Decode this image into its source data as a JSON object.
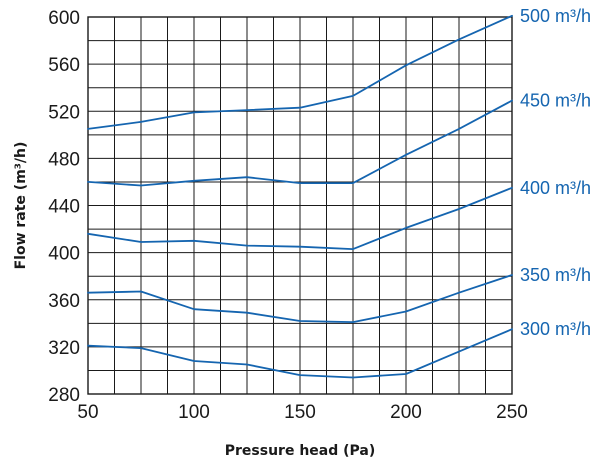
{
  "chart_data": {
    "type": "line",
    "xlabel": "Pressure head (Pa)",
    "ylabel": "Flow rate (m³/h)",
    "xlim": [
      50,
      250
    ],
    "ylim": [
      280,
      600
    ],
    "x_ticks": [
      50,
      100,
      150,
      200,
      250
    ],
    "y_ticks": [
      280,
      320,
      360,
      400,
      440,
      480,
      520,
      560,
      600
    ],
    "x_minor_step": 12.5,
    "y_minor_step": 20,
    "grid": true,
    "line_color": "#1565b0",
    "series": [
      {
        "name": "300 m³/h",
        "x": [
          50,
          75,
          100,
          125,
          150,
          175,
          200,
          225,
          250
        ],
        "values": [
          321,
          319,
          308,
          305,
          296,
          294,
          297,
          316,
          335
        ]
      },
      {
        "name": "350 m³/h",
        "x": [
          50,
          75,
          100,
          125,
          150,
          175,
          200,
          225,
          250
        ],
        "values": [
          366,
          367,
          352,
          349,
          342,
          341,
          350,
          366,
          381
        ]
      },
      {
        "name": "400 m³/h",
        "x": [
          50,
          75,
          100,
          125,
          150,
          175,
          200,
          225,
          250
        ],
        "values": [
          416,
          409,
          410,
          406,
          405,
          403,
          421,
          437,
          455
        ]
      },
      {
        "name": "450 m³/h",
        "x": [
          50,
          75,
          100,
          125,
          150,
          175,
          200,
          225,
          250
        ],
        "values": [
          460,
          457,
          461,
          464,
          459,
          459,
          483,
          505,
          529
        ]
      },
      {
        "name": "500 m³/h",
        "x": [
          50,
          75,
          100,
          125,
          150,
          175,
          200,
          225,
          250
        ],
        "values": [
          505,
          511,
          519,
          521,
          523,
          533,
          559,
          581,
          601
        ]
      }
    ]
  }
}
